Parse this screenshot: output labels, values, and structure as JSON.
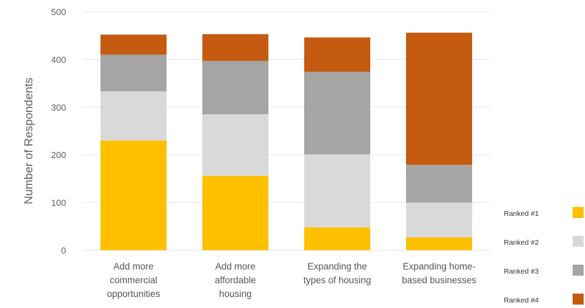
{
  "chart_data": {
    "type": "bar",
    "stacked": true,
    "categories": [
      [
        "Add more",
        "commercial",
        "opportunities"
      ],
      [
        "Add more",
        "affordable",
        "housing"
      ],
      [
        "Expanding the",
        "types of housing"
      ],
      [
        "Expanding home-",
        "based businesses"
      ]
    ],
    "series": [
      {
        "name": "Ranked #1",
        "color": "#FFC000",
        "values": [
          230,
          156,
          48,
          27
        ]
      },
      {
        "name": "Ranked #2",
        "color": "#D9D9D9",
        "values": [
          103,
          129,
          153,
          73
        ]
      },
      {
        "name": "Ranked #3",
        "color": "#A5A5A5",
        "values": [
          77,
          112,
          173,
          79
        ]
      },
      {
        "name": "Ranked #4",
        "color": "#C55A11",
        "values": [
          42,
          56,
          72,
          277
        ]
      }
    ],
    "ylabel": "Number of  Respondents",
    "ylim": [
      0,
      500
    ],
    "yticks": [
      0,
      100,
      200,
      300,
      400,
      500
    ],
    "grid": true,
    "legend": "right, bottom"
  }
}
